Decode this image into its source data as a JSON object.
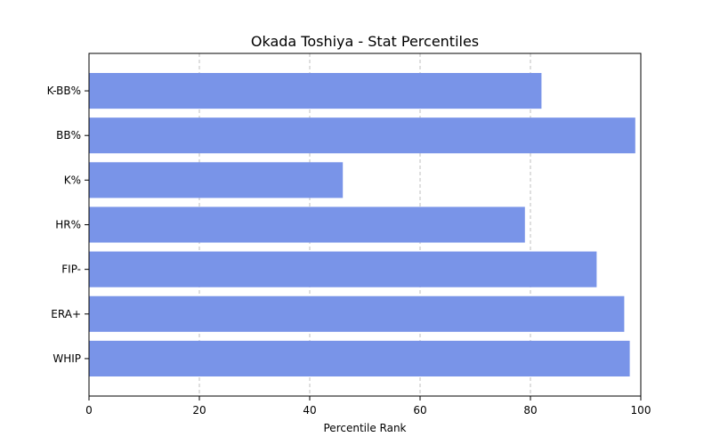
{
  "chart_data": {
    "type": "bar",
    "orientation": "horizontal",
    "title": "Okada Toshiya - Stat Percentiles",
    "xlabel": "Percentile Rank",
    "ylabel": "",
    "xlim": [
      0,
      100
    ],
    "xticks": [
      "0",
      "20",
      "40",
      "60",
      "80",
      "100"
    ],
    "grid": "x-axis dashed",
    "bar_color": "#7994e8",
    "categories": [
      "K-BB%",
      "BB%",
      "K%",
      "HR%",
      "FIP-",
      "ERA+",
      "WHIP"
    ],
    "values": [
      82,
      99,
      46,
      79,
      92,
      97,
      98
    ]
  }
}
